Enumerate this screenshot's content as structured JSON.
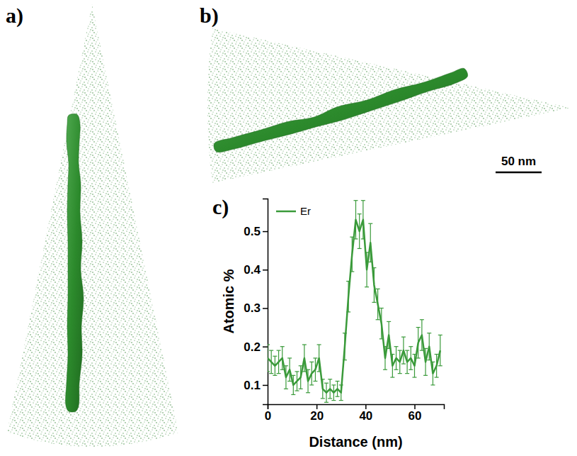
{
  "panel_labels": [
    "a)",
    "b)",
    "c)"
  ],
  "scale_bar": {
    "label": "50 nm",
    "length": 50
  },
  "chart_data": {
    "type": "line",
    "x_label": "Distance (nm)",
    "y_label": "Atomic %",
    "x": [
      0,
      1.5,
      3,
      4.5,
      6,
      7.5,
      9,
      10.5,
      12,
      13.5,
      15,
      16.5,
      18,
      19.5,
      21,
      22.5,
      24,
      25.5,
      27,
      28.5,
      30,
      31.5,
      33,
      34.5,
      36,
      37.5,
      39,
      40.5,
      42,
      43.5,
      45,
      46.5,
      48,
      49.5,
      51,
      52.5,
      54,
      55.5,
      57,
      58.5,
      60,
      61.5,
      63,
      64.5,
      66,
      67.5,
      69,
      70.5
    ],
    "series": [
      {
        "name": "Er",
        "color": "#3a9a3a",
        "values": [
          0.17,
          0.16,
          0.15,
          0.16,
          0.17,
          0.12,
          0.14,
          0.1,
          0.11,
          0.12,
          0.17,
          0.11,
          0.13,
          0.14,
          0.17,
          0.09,
          0.08,
          0.09,
          0.08,
          0.09,
          0.08,
          0.2,
          0.33,
          0.44,
          0.53,
          0.5,
          0.53,
          0.4,
          0.47,
          0.36,
          0.31,
          0.26,
          0.17,
          0.23,
          0.15,
          0.17,
          0.16,
          0.19,
          0.16,
          0.17,
          0.15,
          0.21,
          0.23,
          0.16,
          0.2,
          0.13,
          0.15,
          0.19
        ],
        "errors": [
          0.035,
          0.03,
          0.025,
          0.03,
          0.03,
          0.03,
          0.03,
          0.025,
          0.025,
          0.03,
          0.035,
          0.03,
          0.03,
          0.03,
          0.035,
          0.025,
          0.025,
          0.025,
          0.02,
          0.02,
          0.02,
          0.035,
          0.04,
          0.045,
          0.05,
          0.045,
          0.05,
          0.045,
          0.05,
          0.045,
          0.04,
          0.04,
          0.03,
          0.035,
          0.03,
          0.03,
          0.03,
          0.035,
          0.03,
          0.03,
          0.03,
          0.04,
          0.04,
          0.035,
          0.035,
          0.03,
          0.03,
          0.04
        ]
      }
    ],
    "xlim": [
      0,
      72
    ],
    "xticks": [
      0,
      20,
      40,
      60
    ],
    "ylim": [
      0.05,
      0.585
    ],
    "yticks": [
      0.1,
      0.2,
      0.3,
      0.4,
      0.5
    ],
    "legend": "upper left",
    "grid": false
  }
}
